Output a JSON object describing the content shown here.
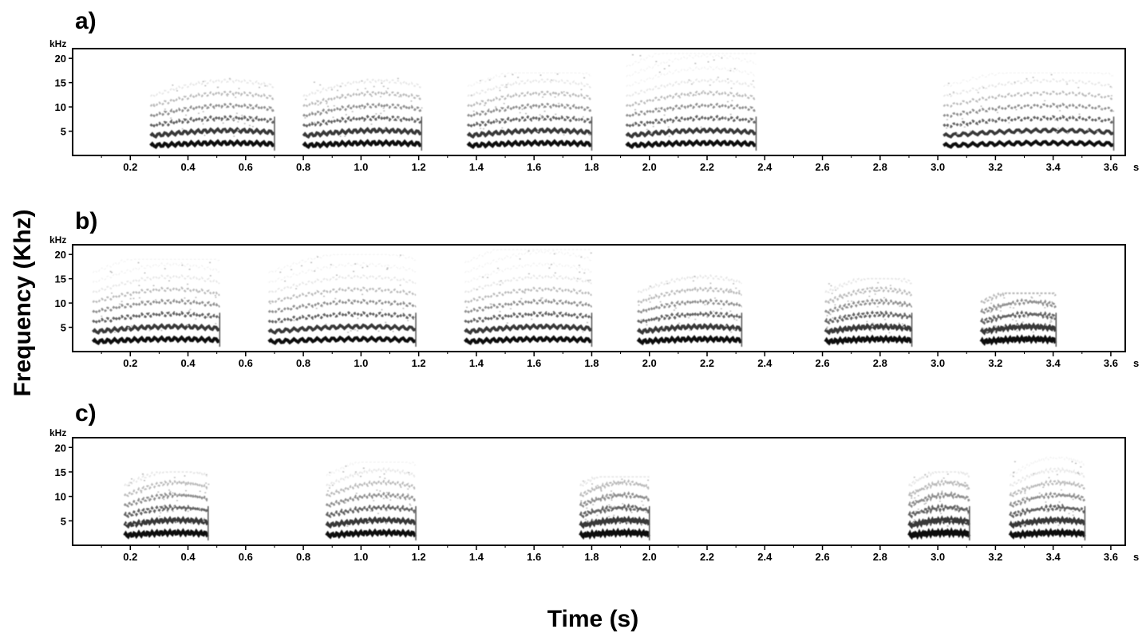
{
  "figure": {
    "ylabel": "Frequency (Khz)",
    "xlabel": "Time (s)"
  },
  "chart_data": [
    {
      "type": "heatmap",
      "chart_kind": "spectrogram",
      "panel_label": "a)",
      "y_unit": "kHz",
      "x_unit": "s",
      "xlim": [
        0,
        3.65
      ],
      "ylim": [
        0,
        22
      ],
      "x_ticks": [
        "0.2",
        "0.4",
        "0.6",
        "0.8",
        "1.0",
        "1.2",
        "1.4",
        "1.6",
        "1.8",
        "2.0",
        "2.2",
        "2.4",
        "2.6",
        "2.8",
        "3.0",
        "3.2",
        "3.4",
        "3.6"
      ],
      "y_ticks": [
        "5",
        "10",
        "15",
        "20"
      ],
      "calls": [
        {
          "start": 0.27,
          "end": 0.7,
          "max_khz": 16
        },
        {
          "start": 0.8,
          "end": 1.21,
          "max_khz": 16
        },
        {
          "start": 1.37,
          "end": 1.8,
          "max_khz": 17
        },
        {
          "start": 1.92,
          "end": 2.37,
          "max_khz": 21
        },
        {
          "start": 3.02,
          "end": 3.61,
          "max_khz": 17
        }
      ]
    },
    {
      "type": "heatmap",
      "chart_kind": "spectrogram",
      "panel_label": "b)",
      "y_unit": "kHz",
      "x_unit": "s",
      "xlim": [
        0,
        3.65
      ],
      "ylim": [
        0,
        22
      ],
      "x_ticks": [
        "0.2",
        "0.4",
        "0.6",
        "0.8",
        "1.0",
        "1.2",
        "1.4",
        "1.6",
        "1.8",
        "2.0",
        "2.2",
        "2.4",
        "2.6",
        "2.8",
        "3.0",
        "3.2",
        "3.4",
        "3.6"
      ],
      "y_ticks": [
        "5",
        "10",
        "15",
        "20"
      ],
      "calls": [
        {
          "start": 0.07,
          "end": 0.51,
          "max_khz": 19
        },
        {
          "start": 0.68,
          "end": 1.19,
          "max_khz": 20
        },
        {
          "start": 1.36,
          "end": 1.8,
          "max_khz": 21
        },
        {
          "start": 1.96,
          "end": 2.32,
          "max_khz": 16
        },
        {
          "start": 2.61,
          "end": 2.91,
          "max_khz": 15
        },
        {
          "start": 3.15,
          "end": 3.41,
          "max_khz": 12
        }
      ]
    },
    {
      "type": "heatmap",
      "chart_kind": "spectrogram",
      "panel_label": "c)",
      "y_unit": "kHz",
      "x_unit": "s",
      "xlim": [
        0,
        3.65
      ],
      "ylim": [
        0,
        22
      ],
      "x_ticks": [
        "0.2",
        "0.4",
        "0.6",
        "0.8",
        "1.0",
        "1.2",
        "1.4",
        "1.6",
        "1.8",
        "2.0",
        "2.2",
        "2.4",
        "2.6",
        "2.8",
        "3.0",
        "3.2",
        "3.4",
        "3.6"
      ],
      "y_ticks": [
        "5",
        "10",
        "15",
        "20"
      ],
      "calls": [
        {
          "start": 0.18,
          "end": 0.47,
          "max_khz": 15
        },
        {
          "start": 0.88,
          "end": 1.19,
          "max_khz": 17
        },
        {
          "start": 1.76,
          "end": 2.0,
          "max_khz": 14
        },
        {
          "start": 2.9,
          "end": 3.11,
          "max_khz": 15
        },
        {
          "start": 3.25,
          "end": 3.51,
          "max_khz": 18
        }
      ]
    }
  ]
}
